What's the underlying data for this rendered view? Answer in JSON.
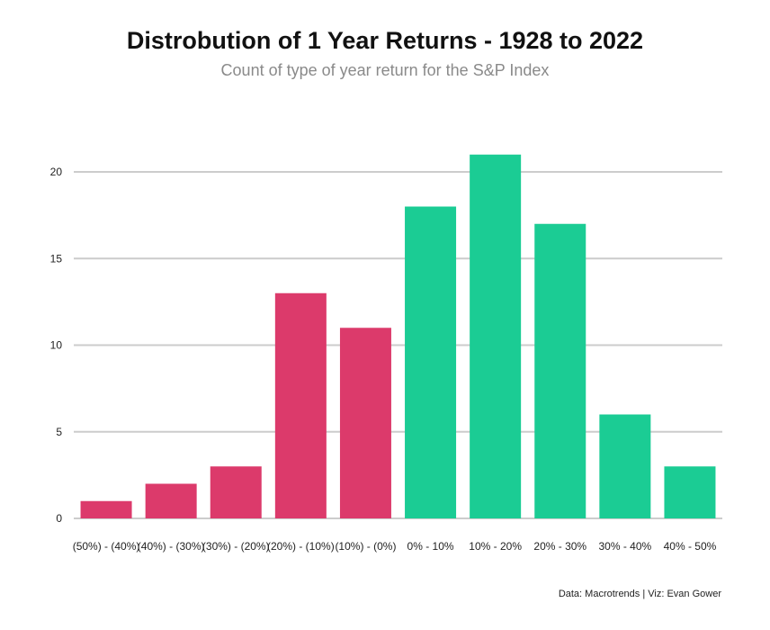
{
  "title": "Distrobution of 1 Year Returns - 1928 to 2022",
  "subtitle": "Count of type of year return for the S&P Index",
  "footer": "Data: Macrotrends | Viz: Evan Gower",
  "colors": {
    "negative": "#DC3A6B",
    "positive": "#1BCC94",
    "grid": "#cccccc",
    "text": "#222222"
  },
  "chart_data": {
    "type": "bar",
    "categories": [
      "(50%) - (40%)",
      "(40%) - (30%)",
      "(30%) - (20%)",
      "(20%) - (10%)",
      "(10%) - (0%)",
      "0% - 10%",
      "10% - 20%",
      "20% - 30%",
      "30% - 40%",
      "40% - 50%"
    ],
    "values": [
      1,
      2,
      3,
      13,
      11,
      18,
      21,
      17,
      6,
      3
    ],
    "bar_colors": [
      "negative",
      "negative",
      "negative",
      "negative",
      "negative",
      "positive",
      "positive",
      "positive",
      "positive",
      "positive"
    ],
    "ylim": [
      0,
      20
    ],
    "yticks": [
      0,
      5,
      10,
      15,
      20
    ],
    "grid": true
  }
}
